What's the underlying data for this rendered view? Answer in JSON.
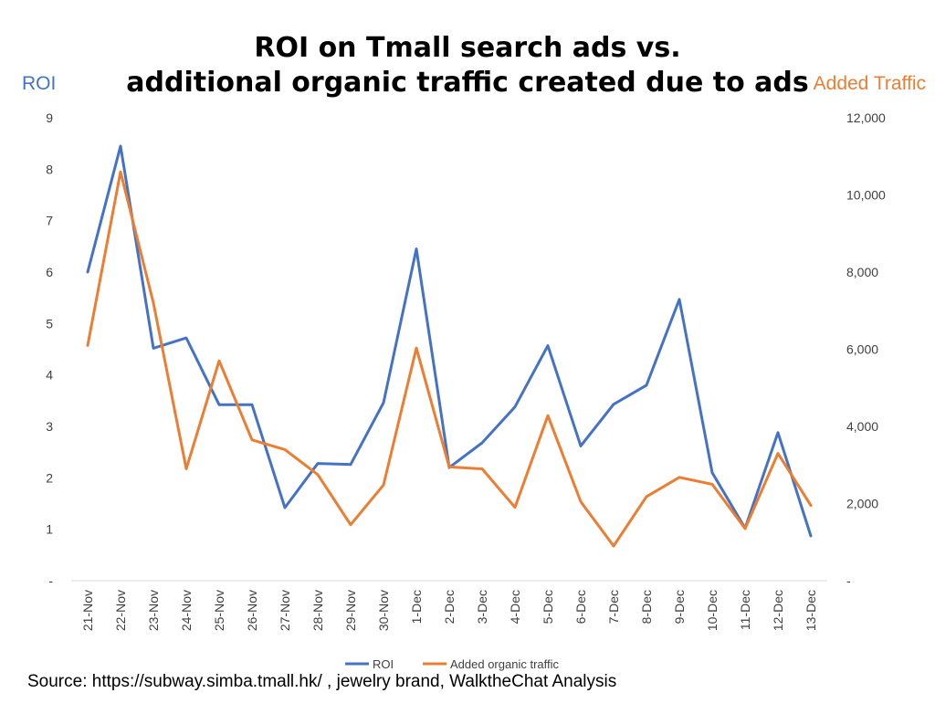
{
  "chart_data": {
    "type": "line",
    "title_lines": [
      "ROI on Tmall search ads vs.",
      "additional organic traffic created due to ads"
    ],
    "ylabel_left": "ROI",
    "ylabel_right": "Added Traffic",
    "categories": [
      "21-Nov",
      "22-Nov",
      "23-Nov",
      "24-Nov",
      "25-Nov",
      "26-Nov",
      "27-Nov",
      "28-Nov",
      "29-Nov",
      "30-Nov",
      "1-Dec",
      "2-Dec",
      "3-Dec",
      "4-Dec",
      "5-Dec",
      "6-Dec",
      "7-Dec",
      "8-Dec",
      "9-Dec",
      "10-Dec",
      "11-Dec",
      "12-Dec",
      "13-Dec"
    ],
    "left_axis": {
      "min": 0,
      "max": 9,
      "ticks": [
        "-",
        "1",
        "2",
        "3",
        "4",
        "5",
        "6",
        "7",
        "8",
        "9"
      ]
    },
    "right_axis": {
      "min": 0,
      "max": 12000,
      "ticks": [
        "-",
        "2,000",
        "4,000",
        "6,000",
        "8,000",
        "10,000",
        "12,000"
      ]
    },
    "series": [
      {
        "name": "ROI",
        "axis": "left",
        "color": "#4472c4",
        "values": [
          6.0,
          8.45,
          4.52,
          4.72,
          3.42,
          3.42,
          1.42,
          2.28,
          2.26,
          3.46,
          6.45,
          2.2,
          2.68,
          3.38,
          4.57,
          2.62,
          3.43,
          3.8,
          5.47,
          2.1,
          1.02,
          2.88,
          0.87
        ]
      },
      {
        "name": "Added organic traffic",
        "axis": "right",
        "color": "#ed7d31",
        "values": [
          6100,
          10600,
          7200,
          2900,
          5700,
          3650,
          3400,
          2750,
          1450,
          2480,
          6030,
          2950,
          2900,
          1900,
          4280,
          2050,
          900,
          2180,
          2680,
          2500,
          1350,
          3300,
          1950
        ]
      }
    ],
    "legend_position": "bottom",
    "grid": false
  },
  "source_text": "Source: https://subway.simba.tmall.hk/ , jewelry brand, WalktheChat Analysis"
}
